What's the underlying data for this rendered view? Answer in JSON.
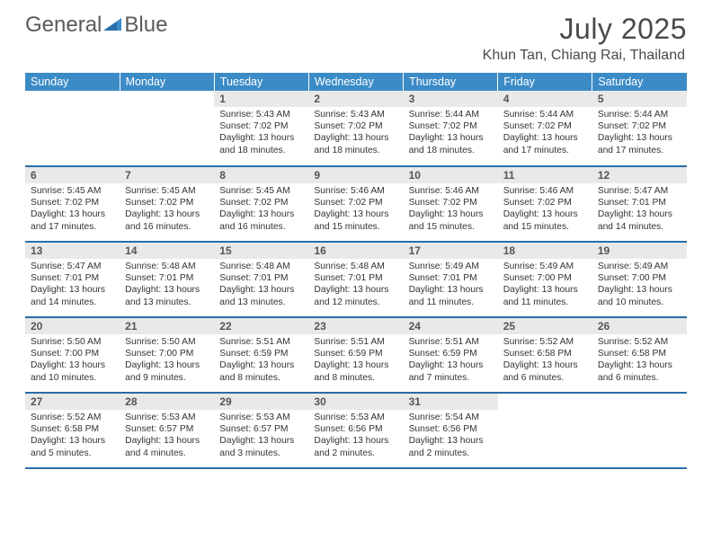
{
  "brand": {
    "word1": "General",
    "word2": "Blue",
    "text_color": "#5a5a5a",
    "accent_color": "#3b8bc6"
  },
  "header": {
    "title": "July 2025",
    "location": "Khun Tan, Chiang Rai, Thailand"
  },
  "calendar": {
    "header_bg": "#3b8bc6",
    "header_fg": "#ffffff",
    "daynum_bg": "#e9e9e9",
    "row_divider": "#2a6ea8",
    "days_of_week": [
      "Sunday",
      "Monday",
      "Tuesday",
      "Wednesday",
      "Thursday",
      "Friday",
      "Saturday"
    ],
    "weeks": [
      [
        null,
        null,
        {
          "n": "1",
          "sr": "5:43 AM",
          "ss": "7:02 PM",
          "dl": "13 hours and 18 minutes."
        },
        {
          "n": "2",
          "sr": "5:43 AM",
          "ss": "7:02 PM",
          "dl": "13 hours and 18 minutes."
        },
        {
          "n": "3",
          "sr": "5:44 AM",
          "ss": "7:02 PM",
          "dl": "13 hours and 18 minutes."
        },
        {
          "n": "4",
          "sr": "5:44 AM",
          "ss": "7:02 PM",
          "dl": "13 hours and 17 minutes."
        },
        {
          "n": "5",
          "sr": "5:44 AM",
          "ss": "7:02 PM",
          "dl": "13 hours and 17 minutes."
        }
      ],
      [
        {
          "n": "6",
          "sr": "5:45 AM",
          "ss": "7:02 PM",
          "dl": "13 hours and 17 minutes."
        },
        {
          "n": "7",
          "sr": "5:45 AM",
          "ss": "7:02 PM",
          "dl": "13 hours and 16 minutes."
        },
        {
          "n": "8",
          "sr": "5:45 AM",
          "ss": "7:02 PM",
          "dl": "13 hours and 16 minutes."
        },
        {
          "n": "9",
          "sr": "5:46 AM",
          "ss": "7:02 PM",
          "dl": "13 hours and 15 minutes."
        },
        {
          "n": "10",
          "sr": "5:46 AM",
          "ss": "7:02 PM",
          "dl": "13 hours and 15 minutes."
        },
        {
          "n": "11",
          "sr": "5:46 AM",
          "ss": "7:02 PM",
          "dl": "13 hours and 15 minutes."
        },
        {
          "n": "12",
          "sr": "5:47 AM",
          "ss": "7:01 PM",
          "dl": "13 hours and 14 minutes."
        }
      ],
      [
        {
          "n": "13",
          "sr": "5:47 AM",
          "ss": "7:01 PM",
          "dl": "13 hours and 14 minutes."
        },
        {
          "n": "14",
          "sr": "5:48 AM",
          "ss": "7:01 PM",
          "dl": "13 hours and 13 minutes."
        },
        {
          "n": "15",
          "sr": "5:48 AM",
          "ss": "7:01 PM",
          "dl": "13 hours and 13 minutes."
        },
        {
          "n": "16",
          "sr": "5:48 AM",
          "ss": "7:01 PM",
          "dl": "13 hours and 12 minutes."
        },
        {
          "n": "17",
          "sr": "5:49 AM",
          "ss": "7:01 PM",
          "dl": "13 hours and 11 minutes."
        },
        {
          "n": "18",
          "sr": "5:49 AM",
          "ss": "7:00 PM",
          "dl": "13 hours and 11 minutes."
        },
        {
          "n": "19",
          "sr": "5:49 AM",
          "ss": "7:00 PM",
          "dl": "13 hours and 10 minutes."
        }
      ],
      [
        {
          "n": "20",
          "sr": "5:50 AM",
          "ss": "7:00 PM",
          "dl": "13 hours and 10 minutes."
        },
        {
          "n": "21",
          "sr": "5:50 AM",
          "ss": "7:00 PM",
          "dl": "13 hours and 9 minutes."
        },
        {
          "n": "22",
          "sr": "5:51 AM",
          "ss": "6:59 PM",
          "dl": "13 hours and 8 minutes."
        },
        {
          "n": "23",
          "sr": "5:51 AM",
          "ss": "6:59 PM",
          "dl": "13 hours and 8 minutes."
        },
        {
          "n": "24",
          "sr": "5:51 AM",
          "ss": "6:59 PM",
          "dl": "13 hours and 7 minutes."
        },
        {
          "n": "25",
          "sr": "5:52 AM",
          "ss": "6:58 PM",
          "dl": "13 hours and 6 minutes."
        },
        {
          "n": "26",
          "sr": "5:52 AM",
          "ss": "6:58 PM",
          "dl": "13 hours and 6 minutes."
        }
      ],
      [
        {
          "n": "27",
          "sr": "5:52 AM",
          "ss": "6:58 PM",
          "dl": "13 hours and 5 minutes."
        },
        {
          "n": "28",
          "sr": "5:53 AM",
          "ss": "6:57 PM",
          "dl": "13 hours and 4 minutes."
        },
        {
          "n": "29",
          "sr": "5:53 AM",
          "ss": "6:57 PM",
          "dl": "13 hours and 3 minutes."
        },
        {
          "n": "30",
          "sr": "5:53 AM",
          "ss": "6:56 PM",
          "dl": "13 hours and 2 minutes."
        },
        {
          "n": "31",
          "sr": "5:54 AM",
          "ss": "6:56 PM",
          "dl": "13 hours and 2 minutes."
        },
        null,
        null
      ]
    ]
  }
}
